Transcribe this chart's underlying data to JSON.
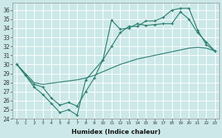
{
  "xlabel": "Humidex (Indice chaleur)",
  "bg_color": "#cce8e8",
  "grid_color": "#ffffff",
  "line_color": "#2a7d6e",
  "xlim": [
    -0.5,
    23.5
  ],
  "ylim": [
    24,
    36.8
  ],
  "xticks": [
    0,
    1,
    2,
    3,
    4,
    5,
    6,
    7,
    8,
    9,
    10,
    11,
    12,
    13,
    14,
    15,
    16,
    17,
    18,
    19,
    20,
    21,
    22,
    23
  ],
  "yticks": [
    24,
    25,
    26,
    27,
    28,
    29,
    30,
    31,
    32,
    33,
    34,
    35,
    36
  ],
  "line1_x": [
    0,
    1,
    2,
    3,
    4,
    5,
    6,
    7,
    8,
    10,
    11,
    12,
    13,
    14,
    15,
    16,
    17,
    18,
    19,
    20,
    21,
    22,
    23
  ],
  "line1_y": [
    30.0,
    28.8,
    27.5,
    26.7,
    25.7,
    24.7,
    25.0,
    24.4,
    28.3,
    30.5,
    34.9,
    33.9,
    34.0,
    34.5,
    34.3,
    34.4,
    34.5,
    34.5,
    35.8,
    35.0,
    33.5,
    32.5,
    31.5
  ],
  "line2_x": [
    0,
    1,
    2,
    3,
    4,
    5,
    6,
    7,
    8,
    9,
    10,
    11,
    12,
    13,
    14,
    15,
    16,
    17,
    18,
    19,
    20,
    21,
    22,
    23
  ],
  "line2_y": [
    30.0,
    28.8,
    27.8,
    27.5,
    26.3,
    25.5,
    25.8,
    25.4,
    27.0,
    28.5,
    30.5,
    32.0,
    33.5,
    34.2,
    34.2,
    34.8,
    34.8,
    35.2,
    36.0,
    36.2,
    36.2,
    33.8,
    32.2,
    31.5
  ],
  "line3_x": [
    0,
    2,
    3,
    7,
    8,
    9,
    10,
    11,
    12,
    13,
    14,
    15,
    16,
    17,
    18,
    19,
    20,
    21,
    22,
    23
  ],
  "line3_y": [
    30.0,
    28.0,
    27.8,
    28.3,
    28.5,
    28.8,
    29.2,
    29.6,
    30.0,
    30.3,
    30.6,
    30.8,
    31.0,
    31.2,
    31.4,
    31.6,
    31.8,
    31.9,
    31.8,
    31.5
  ]
}
